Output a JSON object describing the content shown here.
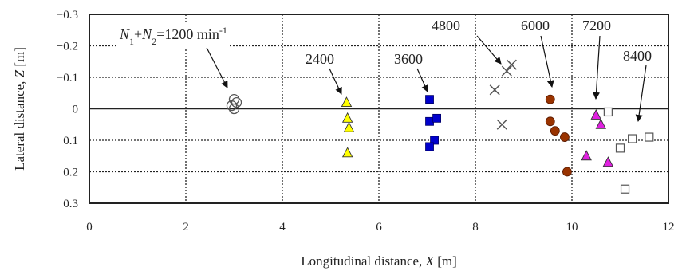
{
  "chart_data": {
    "type": "scatter",
    "title": "",
    "xlabel": "Longitudinal distance, X [m]",
    "ylabel": "Lateral distance, Z [m]",
    "xlim": [
      0,
      12
    ],
    "ylim": [
      -0.3,
      0.3
    ],
    "y_inverted": true,
    "x_ticks": [
      "0",
      "2",
      "4",
      "6",
      "8",
      "10",
      "12"
    ],
    "y_ticks": [
      "−0.3",
      "−0.2",
      "−0.1",
      "0",
      "0.1",
      "0.2",
      "0.3"
    ],
    "grid": "dotted",
    "legend": "none (series labelled by annotations with arrows)",
    "series": [
      {
        "name": "1200",
        "marker": "open-circle",
        "color": "#555555",
        "points": [
          [
            3.0,
            -0.03
          ],
          [
            3.05,
            -0.02
          ],
          [
            2.95,
            -0.01
          ],
          [
            3.0,
            0.0
          ]
        ]
      },
      {
        "name": "2400",
        "marker": "filled-triangle",
        "color": "#ffff00",
        "points": [
          [
            5.33,
            -0.02
          ],
          [
            5.35,
            0.03
          ],
          [
            5.38,
            0.06
          ],
          [
            5.35,
            0.14
          ]
        ]
      },
      {
        "name": "3600",
        "marker": "filled-square",
        "color": "#0000cc",
        "points": [
          [
            7.05,
            -0.03
          ],
          [
            7.05,
            0.04
          ],
          [
            7.2,
            0.03
          ],
          [
            7.15,
            0.1
          ],
          [
            7.05,
            0.12
          ]
        ]
      },
      {
        "name": "4800",
        "marker": "cross",
        "color": "#555555",
        "points": [
          [
            8.75,
            -0.14
          ],
          [
            8.65,
            -0.12
          ],
          [
            8.4,
            -0.06
          ],
          [
            8.55,
            0.05
          ]
        ]
      },
      {
        "name": "6000",
        "marker": "filled-circle",
        "color": "#993300",
        "points": [
          [
            9.55,
            -0.03
          ],
          [
            9.55,
            0.04
          ],
          [
            9.65,
            0.07
          ],
          [
            9.85,
            0.09
          ],
          [
            9.9,
            0.2
          ]
        ]
      },
      {
        "name": "7200",
        "marker": "filled-triangle",
        "color": "#e020e0",
        "points": [
          [
            10.5,
            0.02
          ],
          [
            10.6,
            0.05
          ],
          [
            10.3,
            0.15
          ],
          [
            10.75,
            0.17
          ]
        ]
      },
      {
        "name": "8400",
        "marker": "open-square",
        "color": "#555555",
        "points": [
          [
            10.75,
            0.01
          ],
          [
            11.0,
            0.125
          ],
          [
            11.25,
            0.095
          ],
          [
            11.6,
            0.09
          ],
          [
            11.1,
            0.255
          ]
        ]
      }
    ],
    "annotations": [
      {
        "text": "N1+N2=1200 min-1",
        "target": "1200"
      },
      {
        "text": "2400",
        "target": "2400"
      },
      {
        "text": "3600",
        "target": "3600"
      },
      {
        "text": "4800",
        "target": "4800"
      },
      {
        "text": "6000",
        "target": "6000"
      },
      {
        "text": "7200",
        "target": "7200"
      },
      {
        "text": "8400",
        "target": "8400"
      }
    ]
  }
}
